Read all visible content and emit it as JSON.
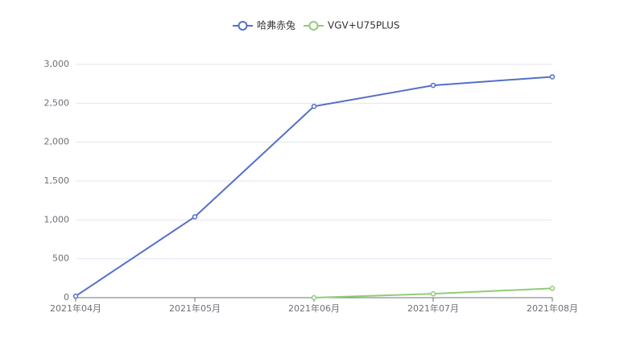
{
  "chart_data": {
    "type": "line",
    "categories": [
      "2021年04月",
      "2021年05月",
      "2021年06月",
      "2021年07月",
      "2021年08月"
    ],
    "series": [
      {
        "name": "哈弗赤兔",
        "color": "#5470c6",
        "values": [
          20,
          1040,
          2460,
          2730,
          2840
        ]
      },
      {
        "name": "VGV+U75PLUS",
        "color": "#91cc75",
        "values": [
          null,
          null,
          0,
          50,
          120
        ]
      }
    ],
    "ylim": [
      0,
      3000
    ],
    "yticks": [
      0,
      500,
      {
        "value": 1000,
        "label": "1,000"
      },
      {
        "value": 1500,
        "label": "1,500"
      },
      {
        "value": 2000,
        "label": "2,000"
      },
      {
        "value": 2500,
        "label": "2,500"
      },
      {
        "value": 3000,
        "label": "3,000"
      }
    ],
    "grid": true,
    "legend": "top"
  }
}
